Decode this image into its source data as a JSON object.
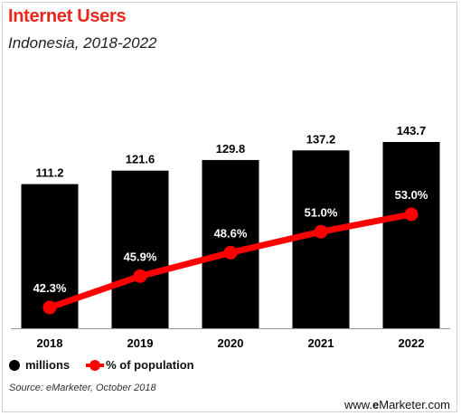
{
  "header": {
    "title": "Internet Users",
    "subtitle": "Indonesia, 2018-2022"
  },
  "legend": {
    "bars_label": "millions",
    "line_label": "% of population"
  },
  "source": "Source: eMarketer, October 2018",
  "footer": {
    "prefix": "www.",
    "brand_e": "e",
    "brand_rest": "Marketer",
    "suffix": ".com"
  },
  "colors": {
    "bar": "#000000",
    "line": "#ff0000",
    "title": "#e8281c"
  },
  "chart_data": {
    "type": "bar",
    "title": "Internet Users",
    "subtitle": "Indonesia, 2018-2022",
    "categories": [
      "2018",
      "2019",
      "2020",
      "2021",
      "2022"
    ],
    "series": [
      {
        "name": "millions",
        "type": "bar",
        "values": [
          111.2,
          121.6,
          129.8,
          137.2,
          143.7
        ],
        "labels": [
          "111.2",
          "121.6",
          "129.8",
          "137.2",
          "143.7"
        ]
      },
      {
        "name": "% of population",
        "type": "line",
        "values": [
          42.3,
          45.9,
          48.6,
          51.0,
          53.0
        ],
        "labels": [
          "42.3%",
          "45.9%",
          "48.6%",
          "51.0%",
          "53.0%"
        ]
      }
    ],
    "legend": "bottom-left",
    "grid": false
  }
}
